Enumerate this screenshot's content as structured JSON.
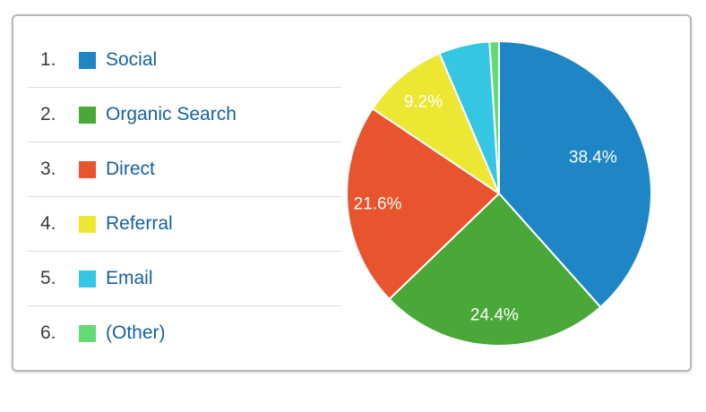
{
  "legend": {
    "items": [
      {
        "rank": "1.",
        "label": "Social",
        "color": "#1e86c4"
      },
      {
        "rank": "2.",
        "label": "Organic Search",
        "color": "#4aa839"
      },
      {
        "rank": "3.",
        "label": "Direct",
        "color": "#e8542e"
      },
      {
        "rank": "4.",
        "label": "Referral",
        "color": "#ece732"
      },
      {
        "rank": "5.",
        "label": "Email",
        "color": "#35c6e3"
      },
      {
        "rank": "6.",
        "label": "(Other)",
        "color": "#63db72"
      }
    ]
  },
  "chart_data": {
    "type": "pie",
    "title": "",
    "categories": [
      "Social",
      "Organic Search",
      "Direct",
      "Referral",
      "Email",
      "(Other)"
    ],
    "values": [
      38.4,
      24.4,
      21.6,
      9.2,
      5.4,
      1.0
    ],
    "slice_labels": [
      "38.4%",
      "24.4%",
      "21.6%",
      "9.2%",
      "",
      ""
    ],
    "colors": [
      "#1e86c4",
      "#4aa839",
      "#e8542e",
      "#ece732",
      "#35c6e3",
      "#63db72"
    ],
    "start_angle_deg": 0,
    "direction": "clockwise",
    "legend_position": "left",
    "slice_label_color": "#ffffff",
    "slice_separator_color": "#ffffff"
  },
  "colors": {
    "legend_text": "#15629e",
    "rank_text": "#3b3b3b",
    "separator": "#dddddd"
  }
}
